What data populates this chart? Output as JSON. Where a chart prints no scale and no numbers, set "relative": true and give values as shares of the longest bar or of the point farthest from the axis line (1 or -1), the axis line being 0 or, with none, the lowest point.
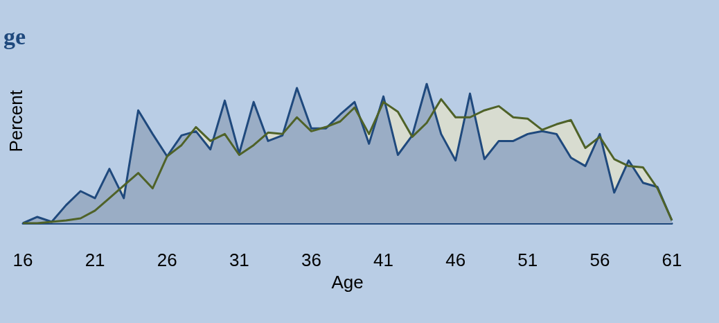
{
  "chart_data": {
    "type": "area",
    "title": "ge",
    "xlabel": "Age",
    "ylabel": "Percent",
    "relative": true,
    "x": [
      16,
      17,
      18,
      19,
      20,
      21,
      22,
      23,
      24,
      25,
      26,
      27,
      28,
      29,
      30,
      31,
      32,
      33,
      34,
      35,
      36,
      37,
      38,
      39,
      40,
      41,
      42,
      43,
      44,
      45,
      46,
      47,
      48,
      49,
      50,
      51,
      52,
      53,
      54,
      55,
      56,
      57,
      58,
      59,
      60,
      61
    ],
    "xlim": [
      16,
      61
    ],
    "xticks": [
      16,
      21,
      26,
      31,
      36,
      41,
      46,
      51,
      56,
      61
    ],
    "series": [
      {
        "color": "#1f497d",
        "values": [
          0,
          0.045,
          0.01,
          0.13,
          0.23,
          0.18,
          0.39,
          0.18,
          0.81,
          0.64,
          0.48,
          0.63,
          0.66,
          0.53,
          0.88,
          0.5,
          0.87,
          0.59,
          0.63,
          0.97,
          0.68,
          0.68,
          0.78,
          0.87,
          0.57,
          0.91,
          0.49,
          0.63,
          1.0,
          0.64,
          0.45,
          0.93,
          0.46,
          0.59,
          0.59,
          0.64,
          0.66,
          0.64,
          0.47,
          0.41,
          0.64,
          0.22,
          0.45,
          0.29,
          0.26,
          0.02
        ]
      },
      {
        "color": "#4f6228",
        "values": [
          0,
          0,
          0.01,
          0.02,
          0.035,
          0.09,
          0.18,
          0.27,
          0.36,
          0.25,
          0.48,
          0.56,
          0.69,
          0.59,
          0.64,
          0.49,
          0.56,
          0.65,
          0.64,
          0.76,
          0.66,
          0.69,
          0.73,
          0.83,
          0.64,
          0.87,
          0.8,
          0.62,
          0.72,
          0.89,
          0.76,
          0.76,
          0.81,
          0.84,
          0.76,
          0.75,
          0.67,
          0.71,
          0.74,
          0.54,
          0.62,
          0.46,
          0.41,
          0.4,
          0.25,
          0.02
        ]
      }
    ]
  }
}
